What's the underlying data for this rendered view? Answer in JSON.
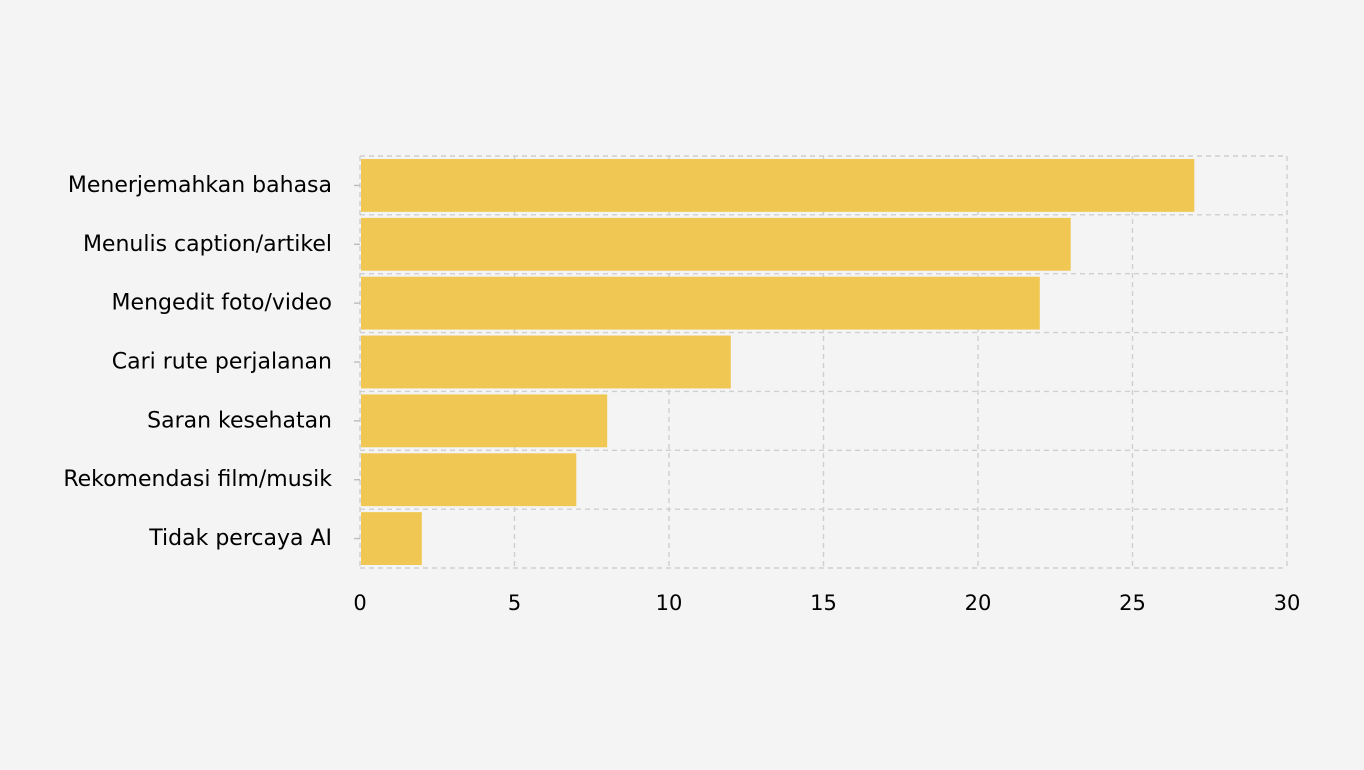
{
  "chart_data": {
    "type": "bar",
    "orientation": "horizontal",
    "title": "",
    "xlabel": "",
    "ylabel": "",
    "categories": [
      "Menerjemahkan bahasa",
      "Menulis caption/artikel",
      "Mengedit foto/video",
      "Cari rute perjalanan",
      "Saran kesehatan",
      "Rekomendasi film/musik",
      "Tidak percaya AI"
    ],
    "values": [
      27,
      23,
      22,
      12,
      8,
      7,
      2
    ],
    "xlim": [
      0,
      30
    ],
    "xticks": [
      "0",
      "5",
      "10",
      "15",
      "20",
      "25",
      "30"
    ],
    "grid": true,
    "bar_color": "#f0c752",
    "background_color": "#f4f4f4",
    "grid_color": "#cfcfcf"
  }
}
